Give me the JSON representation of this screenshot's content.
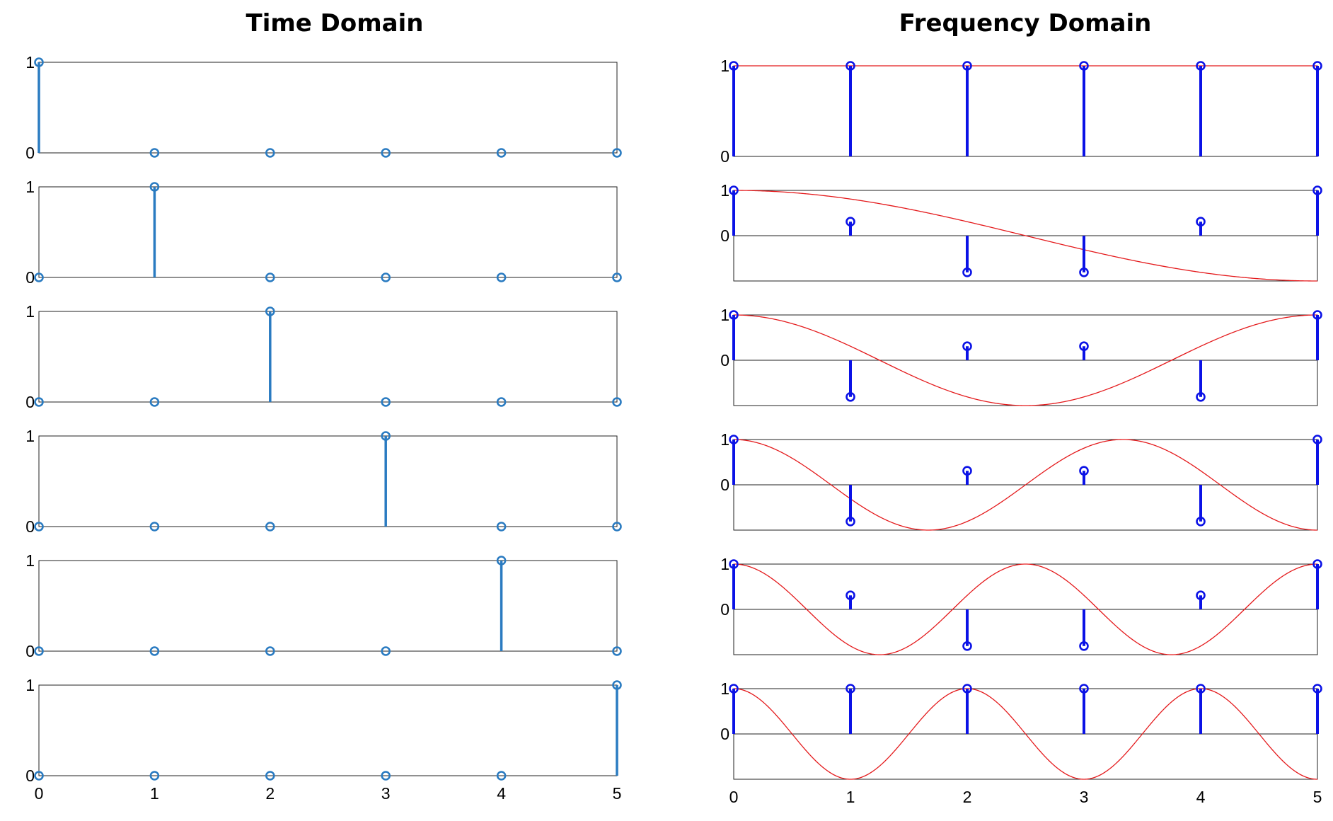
{
  "titles": {
    "time": "Time Domain",
    "frequency": "Frequency Domain"
  },
  "colors": {
    "time_stem": "#2a7bc1",
    "freq_stem": "#0b12e6",
    "freq_curve": "#e41a1c",
    "axis": "#222222"
  },
  "chart_data": [
    {
      "type": "stem",
      "panel": "time-1",
      "x": [
        0,
        1,
        2,
        3,
        4,
        5
      ],
      "values": [
        1,
        0,
        0,
        0,
        0,
        0
      ],
      "ylim": [
        0,
        1
      ],
      "yticks": [
        "0",
        "1"
      ],
      "xlim": [
        0,
        5
      ]
    },
    {
      "type": "stem",
      "panel": "time-2",
      "x": [
        0,
        1,
        2,
        3,
        4,
        5
      ],
      "values": [
        0,
        1,
        0,
        0,
        0,
        0
      ],
      "ylim": [
        0,
        1
      ],
      "yticks": [
        "0",
        "1"
      ],
      "xlim": [
        0,
        5
      ]
    },
    {
      "type": "stem",
      "panel": "time-3",
      "x": [
        0,
        1,
        2,
        3,
        4,
        5
      ],
      "values": [
        0,
        0,
        1,
        0,
        0,
        0
      ],
      "ylim": [
        0,
        1
      ],
      "yticks": [
        "0",
        "1"
      ],
      "xlim": [
        0,
        5
      ]
    },
    {
      "type": "stem",
      "panel": "time-4",
      "x": [
        0,
        1,
        2,
        3,
        4,
        5
      ],
      "values": [
        0,
        0,
        0,
        1,
        0,
        0
      ],
      "ylim": [
        0,
        1
      ],
      "yticks": [
        "0",
        "1"
      ],
      "xlim": [
        0,
        5
      ]
    },
    {
      "type": "stem",
      "panel": "time-5",
      "x": [
        0,
        1,
        2,
        3,
        4,
        5
      ],
      "values": [
        0,
        0,
        0,
        0,
        1,
        0
      ],
      "ylim": [
        0,
        1
      ],
      "yticks": [
        "0",
        "1"
      ],
      "xlim": [
        0,
        5
      ]
    },
    {
      "type": "stem",
      "panel": "time-6",
      "x": [
        0,
        1,
        2,
        3,
        4,
        5
      ],
      "values": [
        0,
        0,
        0,
        0,
        0,
        1
      ],
      "ylim": [
        0,
        1
      ],
      "yticks": [
        "0",
        "1"
      ],
      "xlim": [
        0,
        5
      ],
      "xticks": [
        "0",
        "1",
        "2",
        "3",
        "4",
        "5"
      ]
    },
    {
      "type": "stem",
      "panel": "frequency-1",
      "x": [
        0,
        1,
        2,
        3,
        4,
        5
      ],
      "values": [
        1,
        1,
        1,
        1,
        1,
        1
      ],
      "curve_cycles": 0,
      "ylim": [
        0,
        1
      ],
      "yticks": [
        "0",
        "1"
      ],
      "xlim": [
        0,
        5
      ]
    },
    {
      "type": "stem",
      "panel": "frequency-2",
      "x": [
        0,
        1,
        2,
        3,
        4,
        5
      ],
      "values": [
        1,
        0.309,
        -0.809,
        -0.809,
        0.309,
        1
      ],
      "curve_cycles": 0.5,
      "ylim": [
        -1,
        1
      ],
      "yticks": [
        "0",
        "1"
      ],
      "xlim": [
        0,
        5
      ]
    },
    {
      "type": "stem",
      "panel": "frequency-3",
      "x": [
        0,
        1,
        2,
        3,
        4,
        5
      ],
      "values": [
        1,
        -0.809,
        0.309,
        0.309,
        -0.809,
        1
      ],
      "curve_cycles": 1,
      "ylim": [
        -1,
        1
      ],
      "yticks": [
        "0",
        "1"
      ],
      "xlim": [
        0,
        5
      ]
    },
    {
      "type": "stem",
      "panel": "frequency-4",
      "x": [
        0,
        1,
        2,
        3,
        4,
        5
      ],
      "values": [
        1,
        -0.809,
        0.309,
        0.309,
        -0.809,
        1
      ],
      "curve_cycles": 1.5,
      "ylim": [
        -1,
        1
      ],
      "yticks": [
        "0",
        "1"
      ],
      "xlim": [
        0,
        5
      ]
    },
    {
      "type": "stem",
      "panel": "frequency-5",
      "x": [
        0,
        1,
        2,
        3,
        4,
        5
      ],
      "values": [
        1,
        0.309,
        -0.809,
        -0.809,
        0.309,
        1
      ],
      "curve_cycles": 2,
      "ylim": [
        -1,
        1
      ],
      "yticks": [
        "0",
        "1"
      ],
      "xlim": [
        0,
        5
      ]
    },
    {
      "type": "stem",
      "panel": "frequency-6",
      "x": [
        0,
        1,
        2,
        3,
        4,
        5
      ],
      "values": [
        1,
        1,
        1,
        1,
        1,
        1
      ],
      "curve_cycles": 2.5,
      "ylim": [
        -1,
        1
      ],
      "yticks": [
        "0",
        "1"
      ],
      "xlim": [
        0,
        5
      ],
      "xticks": [
        "0",
        "1",
        "2",
        "3",
        "4",
        "5"
      ]
    }
  ]
}
